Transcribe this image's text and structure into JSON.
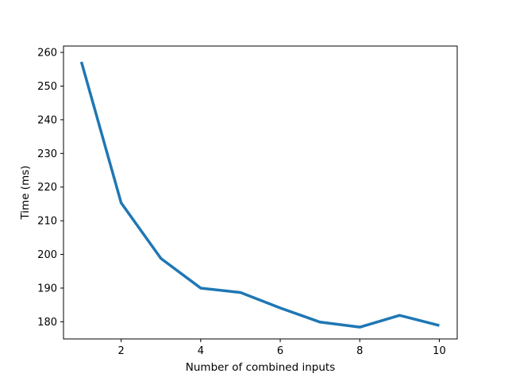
{
  "chart_data": {
    "type": "line",
    "title": "",
    "xlabel": "Number of combined inputs",
    "ylabel": "Time (ms)",
    "xlim": [
      0.55,
      10.45
    ],
    "ylim": [
      174.9,
      261.9
    ],
    "xticks": [
      2,
      4,
      6,
      8,
      10
    ],
    "yticks": [
      180,
      190,
      200,
      210,
      220,
      230,
      240,
      250,
      260
    ],
    "grid": false,
    "legend": "none",
    "series": [
      {
        "color": "#1f77b4",
        "x": [
          1,
          2,
          3,
          4,
          5,
          6,
          7,
          8,
          9,
          10
        ],
        "y": [
          257.2,
          215.3,
          198.8,
          190.0,
          188.7,
          184.1,
          179.9,
          178.4,
          181.9,
          178.9
        ]
      }
    ]
  }
}
